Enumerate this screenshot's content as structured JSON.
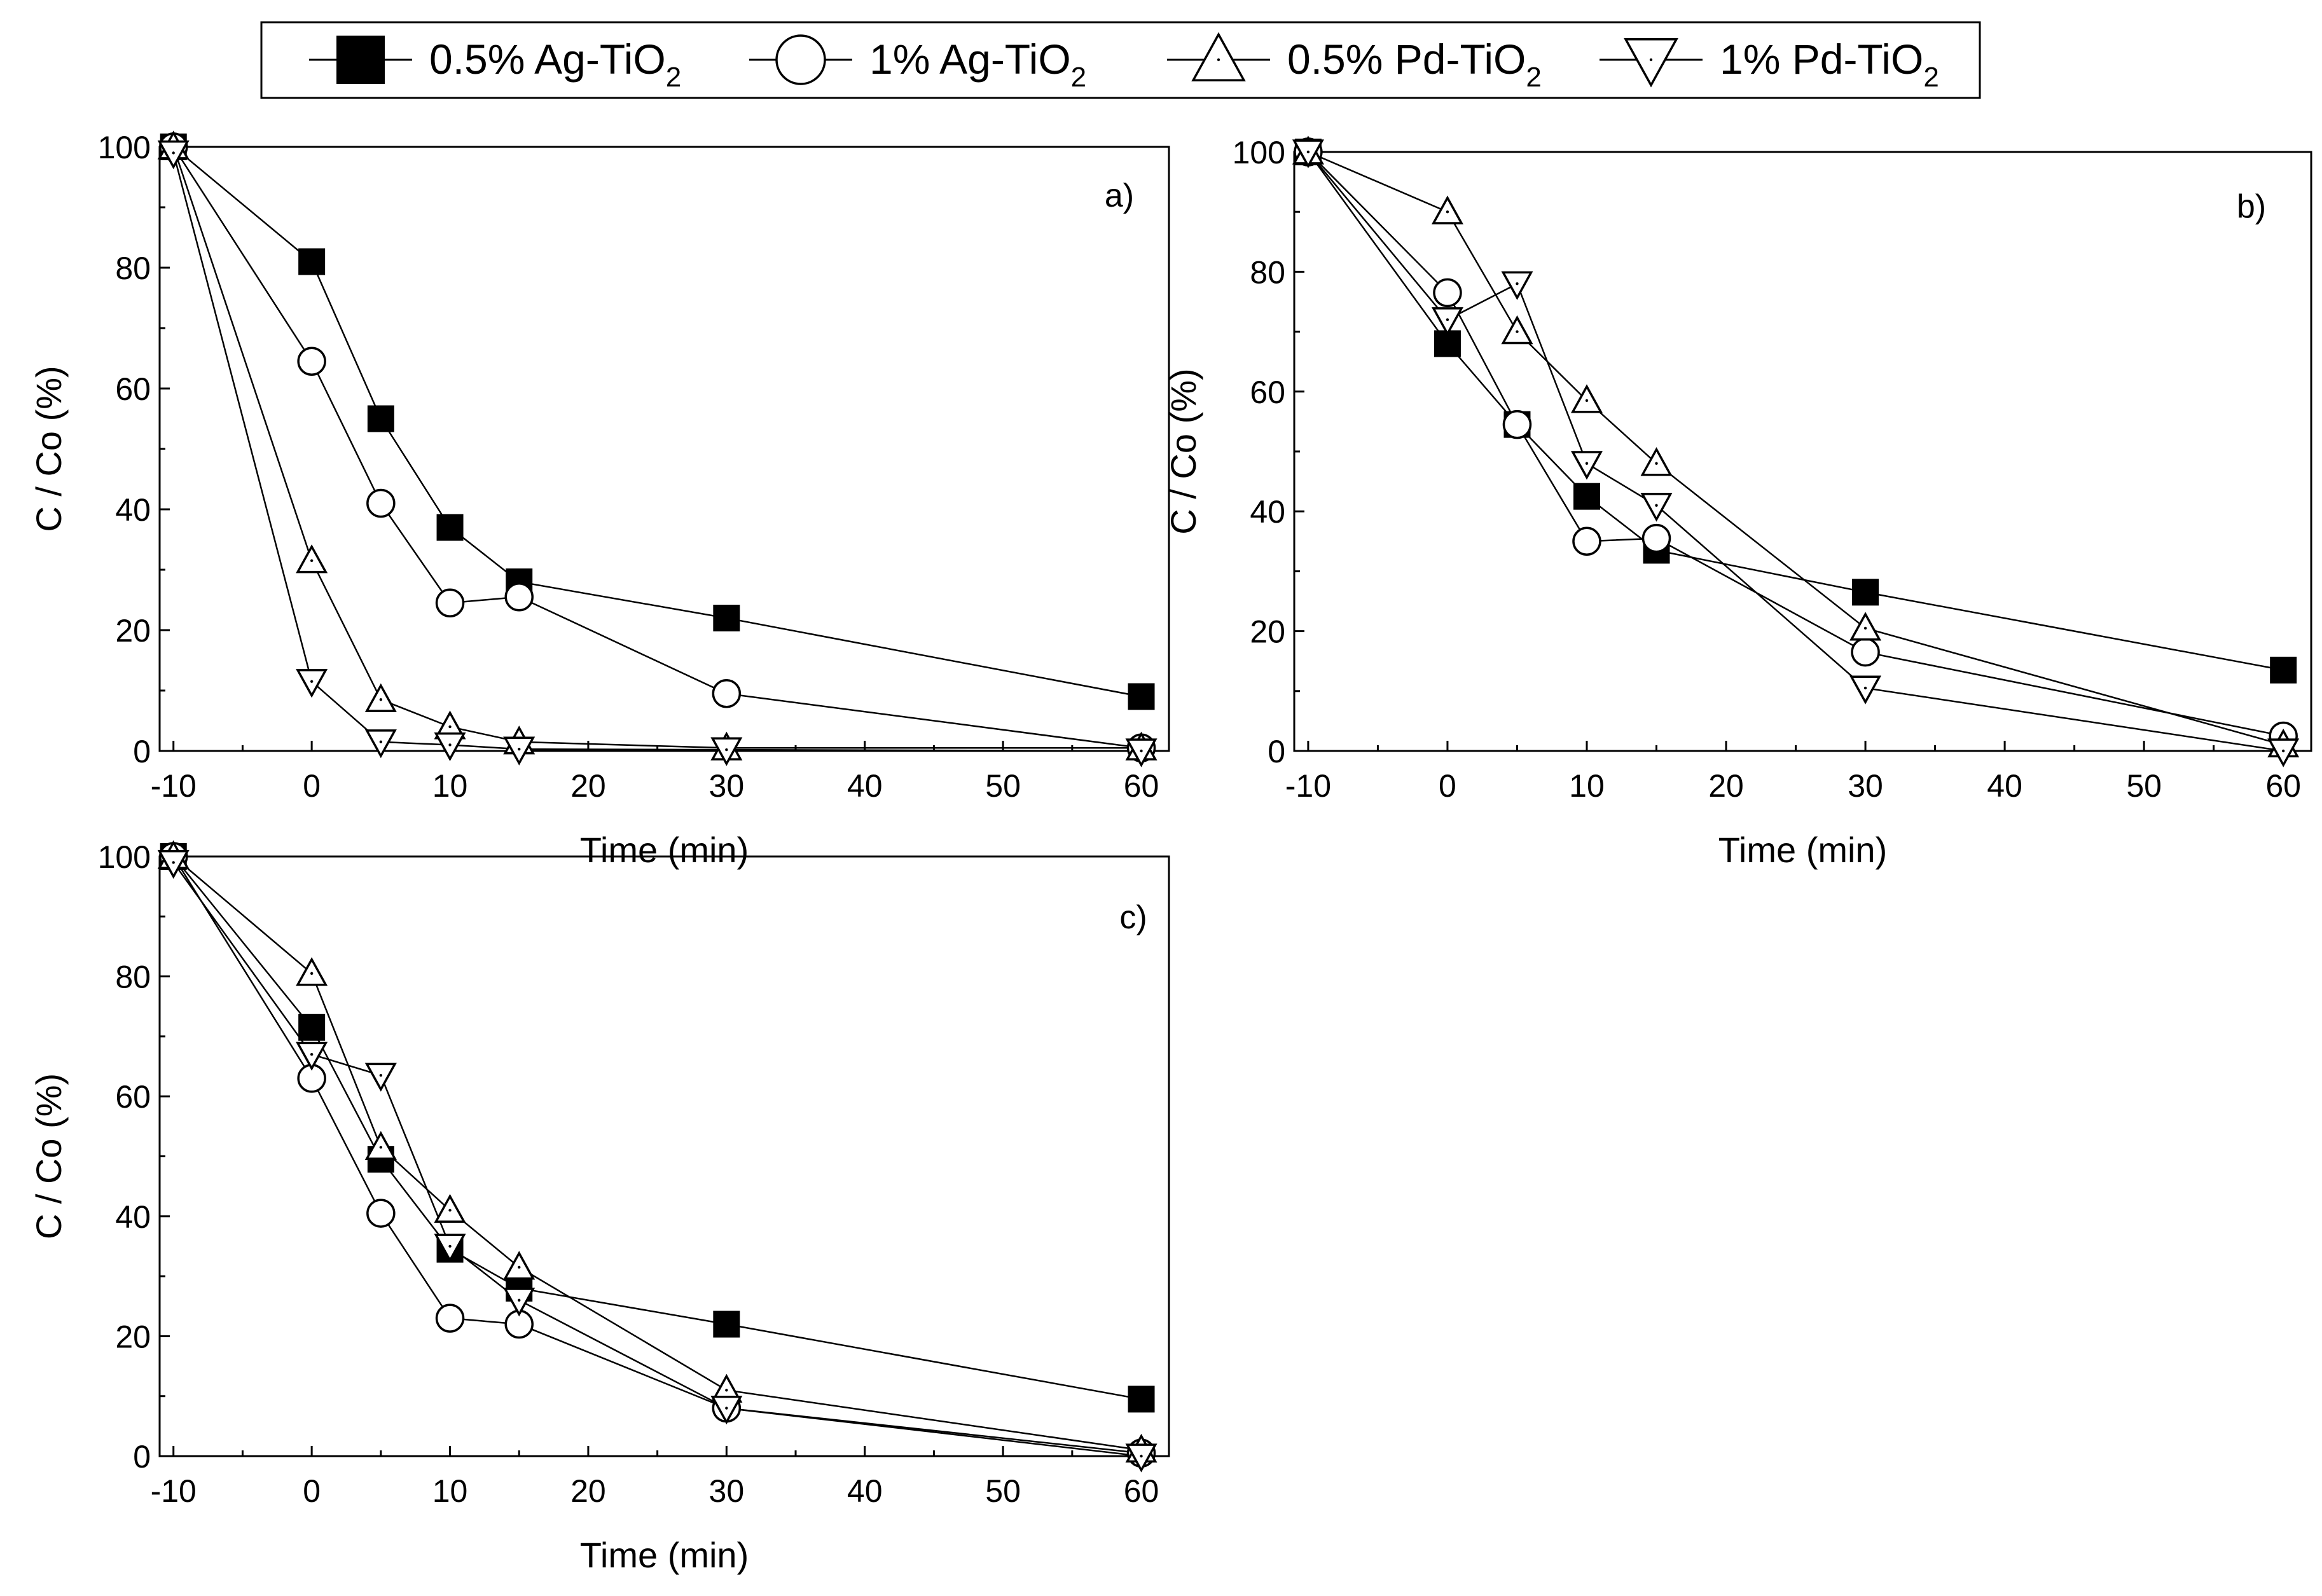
{
  "legend": {
    "entries": [
      {
        "marker": "filled-square",
        "label": "0.5% Ag-TiO",
        "sub": "2"
      },
      {
        "marker": "open-circle",
        "label": "1% Ag-TiO",
        "sub": "2"
      },
      {
        "marker": "open-triangle-up",
        "label": "0.5% Pd-TiO",
        "sub": "2"
      },
      {
        "marker": "open-triangle-down",
        "label": "1% Pd-TiO",
        "sub": "2"
      }
    ]
  },
  "chart_data": [
    {
      "type": "line",
      "panel": "a)",
      "xlabel": "Time (min)",
      "ylabel": "C / Co (%)",
      "xlim": [
        -11,
        62
      ],
      "ylim": [
        0,
        100
      ],
      "xticks": [
        -10,
        0,
        10,
        20,
        30,
        40,
        50,
        60
      ],
      "yticks": [
        0,
        20,
        40,
        60,
        80,
        100
      ],
      "x": [
        -10,
        0,
        5,
        10,
        15,
        30,
        60
      ],
      "series": [
        {
          "name": "0.5% Ag-TiO2",
          "values": [
            100,
            81,
            55,
            37,
            28,
            22,
            9
          ]
        },
        {
          "name": "1% Ag-TiO2",
          "values": [
            100,
            64.5,
            41,
            24.5,
            25.5,
            9.5,
            0.5
          ]
        },
        {
          "name": "0.5% Pd-TiO2",
          "values": [
            100,
            31.5,
            8.5,
            4,
            1.5,
            0.5,
            0.5
          ]
        },
        {
          "name": "1% Pd-TiO2",
          "values": [
            99,
            11.5,
            1.5,
            1,
            0.3,
            0.2,
            0
          ]
        }
      ]
    },
    {
      "type": "line",
      "panel": "b)",
      "xlabel": "Time (min)",
      "ylabel": "C / Co (%)",
      "xlim": [
        -11,
        62
      ],
      "ylim": [
        0,
        100
      ],
      "xticks": [
        -10,
        0,
        10,
        20,
        30,
        40,
        50,
        60
      ],
      "yticks": [
        0,
        20,
        40,
        60,
        80,
        100
      ],
      "x": [
        -10,
        0,
        5,
        10,
        15,
        30,
        60
      ],
      "series": [
        {
          "name": "0.5% Ag-TiO2",
          "values": [
            100,
            68,
            54.5,
            42.5,
            33.5,
            26.5,
            13.5
          ]
        },
        {
          "name": "1% Ag-TiO2",
          "values": [
            100,
            76.5,
            54.5,
            35,
            35.5,
            16.5,
            2.5
          ]
        },
        {
          "name": "0.5% Pd-TiO2",
          "values": [
            100,
            90,
            70,
            58.5,
            48,
            20.5,
            1
          ]
        },
        {
          "name": "1% Pd-TiO2",
          "values": [
            100,
            72,
            78,
            48,
            41,
            10.5,
            0
          ]
        }
      ]
    },
    {
      "type": "line",
      "panel": "c)",
      "xlabel": "Time (min)",
      "ylabel": "C / Co (%)",
      "xlim": [
        -11,
        62
      ],
      "ylim": [
        0,
        100
      ],
      "xticks": [
        -10,
        0,
        10,
        20,
        30,
        40,
        50,
        60
      ],
      "yticks": [
        0,
        20,
        40,
        60,
        80,
        100
      ],
      "x": [
        -10,
        0,
        5,
        10,
        15,
        30,
        60
      ],
      "series": [
        {
          "name": "0.5% Ag-TiO2",
          "values": [
            100,
            71.5,
            49.5,
            34.5,
            28,
            22,
            9.5
          ]
        },
        {
          "name": "1% Ag-TiO2",
          "values": [
            100,
            63,
            40.5,
            23,
            22,
            8,
            0.5
          ]
        },
        {
          "name": "0.5% Pd-TiO2",
          "values": [
            100,
            80.5,
            51.5,
            41,
            31.5,
            11,
            1
          ]
        },
        {
          "name": "1% Pd-TiO2",
          "values": [
            99,
            67,
            63.5,
            35,
            26,
            8,
            0
          ]
        }
      ]
    }
  ]
}
